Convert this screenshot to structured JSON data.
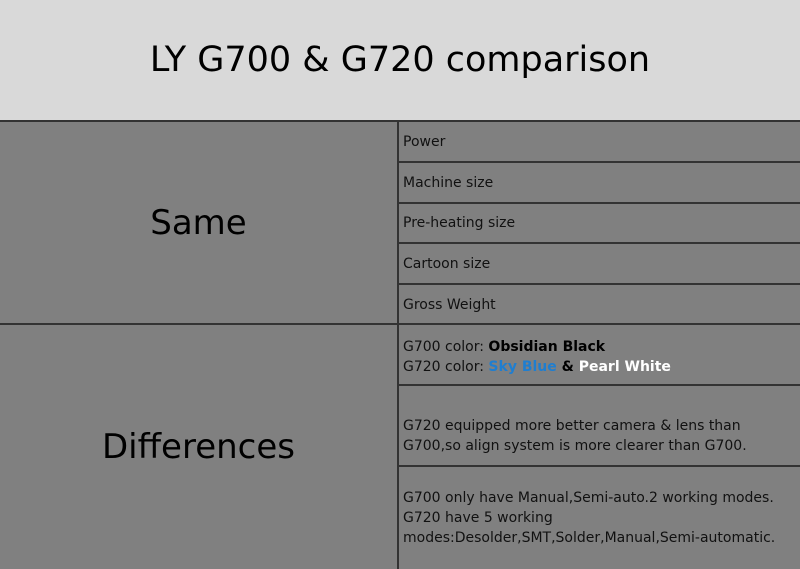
{
  "title": "LY G700 & G720 comparison",
  "same": {
    "label": "Same",
    "items": [
      "Power",
      "Machine size",
      "Pre-heating size",
      "Cartoon size",
      "Gross Weight"
    ]
  },
  "differences": {
    "label": "Differences",
    "color": {
      "g700_prefix": "G700 color: ",
      "g700_value": "Obsidian Black",
      "g720_prefix": "G720 color: ",
      "g720_value1": "Sky Blue",
      "amp": " & ",
      "g720_value2": "Pearl White"
    },
    "camera": "G720 equipped more better camera & lens than G700,so align system is more clearer than G700.",
    "modes": "G700 only have Manual,Semi-auto.2 working modes. G720 have 5 working modes:Desolder,SMT,Solder,Manual,Semi-automatic."
  },
  "colors": {
    "sky_blue": "#1f7ed0",
    "header_bg": "#d9d9d9",
    "body_bg": "#808080"
  }
}
